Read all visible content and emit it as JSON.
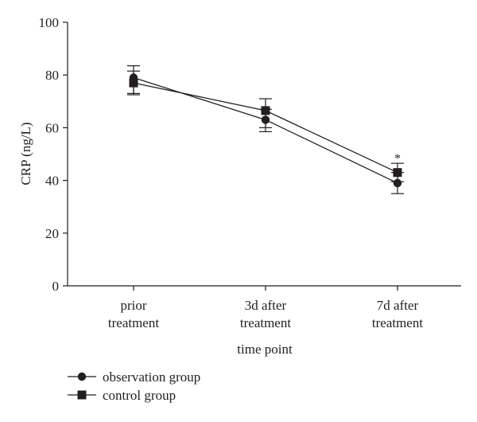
{
  "chart_data": {
    "type": "line",
    "categories": [
      "prior treatment",
      "3d after treatment",
      "7d after treatment"
    ],
    "category_lines": [
      [
        "prior",
        "treatment"
      ],
      [
        "3d after",
        "treatment"
      ],
      [
        "7d after",
        "treatment"
      ]
    ],
    "xlabel": "time point",
    "ylabel": "CRP (ng/L)",
    "ylim": [
      0,
      100
    ],
    "yticks": [
      0,
      20,
      40,
      60,
      80,
      100
    ],
    "grid": false,
    "legend_position": "bottom-left",
    "series": [
      {
        "name": "observation group",
        "marker": "circle",
        "values": [
          79,
          63,
          39
        ],
        "error": [
          [
            72.5,
            83.5
          ],
          [
            58.5,
            67
          ],
          [
            35,
            43
          ]
        ]
      },
      {
        "name": "control group",
        "marker": "square",
        "values": [
          77,
          66.5,
          43
        ],
        "error": [
          [
            73,
            81.5
          ],
          [
            60,
            71
          ],
          [
            39.5,
            46.5
          ]
        ]
      }
    ],
    "annotations": [
      {
        "text": "*",
        "category": "7d after treatment",
        "y": 50.5
      }
    ],
    "colors": {
      "line": "#231f20",
      "background": "#ffffff"
    }
  }
}
